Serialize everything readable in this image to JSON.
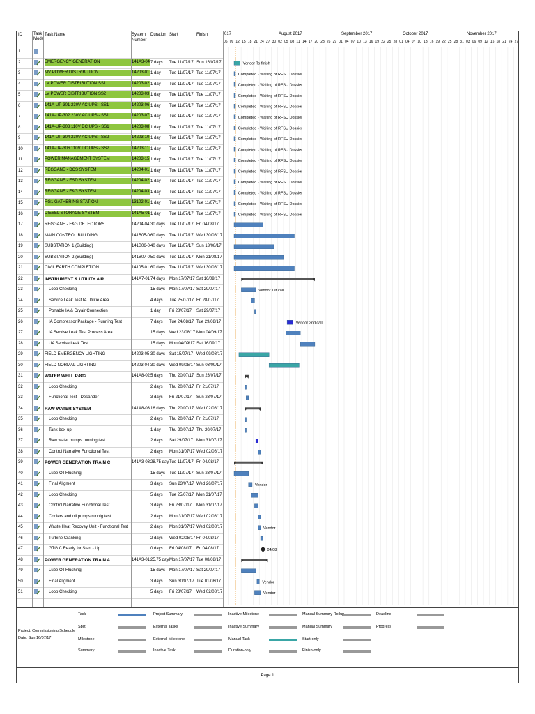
{
  "header": {
    "id": "ID",
    "task_mode": "Task Mode",
    "task_name": "Task Name",
    "system_number": "System Number",
    "duration": "Duration",
    "start": "Start",
    "finish": "Finish"
  },
  "months": [
    "017",
    "August 2017",
    "September 2017",
    "October 2017",
    "November 2017"
  ],
  "weeks": [
    "06",
    "09",
    "12",
    "15",
    "18",
    "21",
    "24",
    "27",
    "30",
    "02",
    "05",
    "08",
    "11",
    "14",
    "17",
    "20",
    "23",
    "26",
    "29",
    "01",
    "04",
    "07",
    "10",
    "13",
    "16",
    "19",
    "22",
    "25",
    "28",
    "01",
    "04",
    "07",
    "10",
    "13",
    "16",
    "19",
    "22",
    "25",
    "28",
    "31",
    "03",
    "06",
    "09",
    "12",
    "15",
    "18",
    "21",
    "24",
    "27"
  ],
  "tasks": [
    {
      "id": "1",
      "name": "",
      "sys": "",
      "dur": "",
      "start": "",
      "finish": "",
      "type": "blank"
    },
    {
      "id": "2",
      "name": "EMERGENCY GENERATION",
      "sys": "141A3-04",
      "dur": "7 days",
      "start": "Tue 11/07/17",
      "finish": "Sun 16/07/17",
      "type": "green",
      "bar": [
        0,
        5
      ],
      "kind": "teal",
      "label": "Vendor To finish"
    },
    {
      "id": "3",
      "name": "MV POWER DISTRIBUTION",
      "sys": "14203-01",
      "dur": "1 day",
      "start": "Tue 11/07/17",
      "finish": "Tue 11/07/17",
      "type": "green",
      "bar": [
        0,
        1
      ],
      "kind": "task",
      "label": "Completed - Waiting of RFSU Dossier"
    },
    {
      "id": "4",
      "name": "LV POWER DISTRIBUTION SS1",
      "sys": "14203-02",
      "dur": "1 day",
      "start": "Tue 11/07/17",
      "finish": "Tue 11/07/17",
      "type": "green",
      "bar": [
        0,
        1
      ],
      "kind": "task",
      "label": "Completed - Waiting of RFSU Dossier"
    },
    {
      "id": "5",
      "name": "LV POWER DISTRIBUTION SS2",
      "sys": "14203-03",
      "dur": "1 day",
      "start": "Tue 11/07/17",
      "finish": "Tue 11/07/17",
      "type": "green",
      "bar": [
        0,
        1
      ],
      "kind": "task",
      "label": "Completed - Waiting of RFSU Dossier"
    },
    {
      "id": "6",
      "name": "141A-UP-301 230V AC UPS - SS1",
      "sys": "14203-06",
      "dur": "1 day",
      "start": "Tue 11/07/17",
      "finish": "Tue 11/07/17",
      "type": "green",
      "bar": [
        0,
        1
      ],
      "kind": "task",
      "label": "Completed - Waiting of RFSU Dossier"
    },
    {
      "id": "7",
      "name": "141A-UP-302 230V AC UPS - SS1",
      "sys": "14203-07",
      "dur": "1 day",
      "start": "Tue 11/07/17",
      "finish": "Tue 11/07/17",
      "type": "green",
      "bar": [
        0,
        1
      ],
      "kind": "task",
      "label": "Completed - Waiting of RFSU Dossier"
    },
    {
      "id": "8",
      "name": "141A-UP-303 110V DC UPS - SS1",
      "sys": "14203-08",
      "dur": "1 day",
      "start": "Tue 11/07/17",
      "finish": "Tue 11/07/17",
      "type": "green",
      "bar": [
        0,
        1
      ],
      "kind": "task",
      "label": "Completed - Waiting of RFSU Dossier"
    },
    {
      "id": "9",
      "name": "141A-UP-304 230V AC UPS - SS2",
      "sys": "14203-10",
      "dur": "1 day",
      "start": "Tue 11/07/17",
      "finish": "Tue 11/07/17",
      "type": "green",
      "bar": [
        0,
        1
      ],
      "kind": "task",
      "label": "Completed - Waiting of RFSU Dossier"
    },
    {
      "id": "10",
      "name": "141A-UP-306 110V DC UPS - SS2",
      "sys": "14203-11",
      "dur": "1 day",
      "start": "Tue 11/07/17",
      "finish": "Tue 11/07/17",
      "type": "green",
      "bar": [
        0,
        1
      ],
      "kind": "task",
      "label": "Completed - Waiting of RFSU Dossier"
    },
    {
      "id": "11",
      "name": "POWER MANAGEMENT SYSTEM",
      "sys": "14203-15",
      "dur": "1 day",
      "start": "Tue 11/07/17",
      "finish": "Tue 11/07/17",
      "type": "green",
      "bar": [
        0,
        1
      ],
      "kind": "task",
      "label": "Completed - Waiting of RFSU Dossier"
    },
    {
      "id": "12",
      "name": "REGGANE - DCS SYSTEM",
      "sys": "14204-01",
      "dur": "1 day",
      "start": "Tue 11/07/17",
      "finish": "Tue 11/07/17",
      "type": "green",
      "bar": [
        0,
        1
      ],
      "kind": "task",
      "label": "Completed - Waiting of RFSU Dossier"
    },
    {
      "id": "13",
      "name": "REGGANE - ESD SYSTEM",
      "sys": "14204-02",
      "dur": "1 day",
      "start": "Tue 11/07/17",
      "finish": "Tue 11/07/17",
      "type": "green",
      "bar": [
        0,
        1
      ],
      "kind": "task",
      "label": "Completed - Waiting of RFSU Dossier"
    },
    {
      "id": "14",
      "name": "REGGANE - F&G SYSTEM",
      "sys": "14204-03",
      "dur": "1 day",
      "start": "Tue 11/07/17",
      "finish": "Tue 11/07/17",
      "type": "green",
      "bar": [
        0,
        1
      ],
      "kind": "task",
      "label": "Completed - Waiting of RFSU Dossier"
    },
    {
      "id": "15",
      "name": "RG1 GATHERING STATION",
      "sys": "13102-01",
      "dur": "1 day",
      "start": "Tue 11/07/17",
      "finish": "Tue 11/07/17",
      "type": "green",
      "bar": [
        0,
        1
      ],
      "kind": "task",
      "label": "Completed - Waiting of RFSU Dossier"
    },
    {
      "id": "16",
      "name": "DIESEL STORAGE SYSTEM",
      "sys": "141A5-01",
      "dur": "1 day",
      "start": "Tue 11/07/17",
      "finish": "Tue 11/07/17",
      "type": "green",
      "bar": [
        0,
        1
      ],
      "kind": "task",
      "label": "Completed - Waiting of RFSU Dossier"
    },
    {
      "id": "17",
      "name": "REGGANE - F&G DETECTORS",
      "sys": "14204-04",
      "dur": "30 days",
      "start": "Tue 11/07/17",
      "finish": "Fri 04/08/17",
      "type": "plain",
      "bar": [
        0,
        24
      ],
      "kind": "task",
      "label": ""
    },
    {
      "id": "18",
      "name": "MAIN CONTROL BUILDING",
      "sys": "141B05-0",
      "dur": "60 days",
      "start": "Tue 11/07/17",
      "finish": "Wed 30/08/17",
      "type": "plain",
      "bar": [
        0,
        50
      ],
      "kind": "task",
      "label": ""
    },
    {
      "id": "19",
      "name": "SUBSTATION 1 (Building)",
      "sys": "141B06-0",
      "dur": "40 days",
      "start": "Tue 11/07/17",
      "finish": "Sun 13/08/17",
      "type": "plain",
      "bar": [
        0,
        33
      ],
      "kind": "task",
      "label": ""
    },
    {
      "id": "20",
      "name": "SUBSTATION 2 (Building)",
      "sys": "141B07-0",
      "dur": "50 days",
      "start": "Tue 11/07/17",
      "finish": "Mon 21/08/17",
      "type": "plain",
      "bar": [
        0,
        41
      ],
      "kind": "task",
      "label": ""
    },
    {
      "id": "21",
      "name": "CIVIL EARTH COMPLETION",
      "sys": "14105-01",
      "dur": "60 days",
      "start": "Tue 11/07/17",
      "finish": "Wed 30/08/17",
      "type": "plain",
      "bar": [
        0,
        50
      ],
      "kind": "task",
      "label": ""
    },
    {
      "id": "22",
      "name": "INSTRUMENT & UTILITY AIR",
      "sys": "141A7-01",
      "dur": "74 days",
      "start": "Mon 17/07/17",
      "finish": "Sat 16/09/17",
      "type": "sum",
      "bar": [
        6,
        67
      ],
      "kind": "summary",
      "label": ""
    },
    {
      "id": "23",
      "name": "Loop Checking",
      "sys": "",
      "dur": "15 days",
      "start": "Mon 17/07/17",
      "finish": "Sat 29/07/17",
      "type": "sub",
      "bar": [
        6,
        18
      ],
      "kind": "task",
      "label": "Vendor 1st call"
    },
    {
      "id": "24",
      "name": "Service Leak Test IA Utilitie Area",
      "sys": "",
      "dur": "4 days",
      "start": "Tue 25/07/17",
      "finish": "Fri 28/07/17",
      "type": "sub",
      "bar": [
        14,
        17
      ],
      "kind": "task",
      "label": ""
    },
    {
      "id": "25",
      "name": "Portable IA & Dryair Connection",
      "sys": "",
      "dur": "1 day",
      "start": "Fri 28/07/17",
      "finish": "Sat 29/07/17",
      "type": "sub",
      "bar": [
        17,
        18
      ],
      "kind": "task",
      "label": ""
    },
    {
      "id": "26",
      "name": "IA Compressor Package - Running Test",
      "sys": "",
      "dur": "7 days",
      "start": "Tue 24/08/17",
      "finish": "Tue 29/08/17",
      "type": "sub",
      "bar": [
        44,
        49
      ],
      "kind": "task-dark",
      "label": "Vendor 2nd call"
    },
    {
      "id": "27",
      "name": "IA Servise Leak Test Process Area",
      "sys": "",
      "dur": "15 days",
      "start": "Wed 23/08/17",
      "finish": "Mon 04/09/17",
      "type": "sub",
      "bar": [
        43,
        55
      ],
      "kind": "task",
      "label": ""
    },
    {
      "id": "28",
      "name": "UA Servise Leak Test",
      "sys": "",
      "dur": "15 days",
      "start": "Mon 04/09/17",
      "finish": "Sat 16/09/17",
      "type": "sub",
      "bar": [
        55,
        67
      ],
      "kind": "task",
      "label": ""
    },
    {
      "id": "29",
      "name": "FIELD EMERGENCY LIGHTING",
      "sys": "14203-05",
      "dur": "30 days",
      "start": "Sat 15/07/17",
      "finish": "Wed 09/08/17",
      "type": "plain",
      "bar": [
        4,
        29
      ],
      "kind": "teal",
      "label": ""
    },
    {
      "id": "30",
      "name": "FIELD NORMAL LIGHTING",
      "sys": "14203-04",
      "dur": "30 days",
      "start": "Wed 09/08/17",
      "finish": "Sun 03/09/17",
      "type": "plain",
      "bar": [
        29,
        54
      ],
      "kind": "teal",
      "label": ""
    },
    {
      "id": "31",
      "name": "WATER WELL P-802",
      "sys": "141A8-02",
      "dur": "5 days",
      "start": "Thu 20/07/17",
      "finish": "Sun 23/07/17",
      "type": "sum",
      "bar": [
        9,
        12
      ],
      "kind": "summary",
      "label": ""
    },
    {
      "id": "32",
      "name": "Loop Checking",
      "sys": "",
      "dur": "2 days",
      "start": "Thu 20/07/17",
      "finish": "Fri 21/07/17",
      "type": "sub",
      "bar": [
        9,
        10
      ],
      "kind": "task",
      "label": ""
    },
    {
      "id": "33",
      "name": "Functional Test - Desander",
      "sys": "",
      "dur": "3 days",
      "start": "Fri 21/07/17",
      "finish": "Sun 23/07/17",
      "type": "sub",
      "bar": [
        10,
        12
      ],
      "kind": "task",
      "label": ""
    },
    {
      "id": "34",
      "name": "RAW WATER SYSTEM",
      "sys": "141A8-03",
      "dur": "16 days",
      "start": "Thu 20/07/17",
      "finish": "Wed 02/08/17",
      "type": "sum",
      "bar": [
        9,
        22
      ],
      "kind": "summary",
      "label": ""
    },
    {
      "id": "35",
      "name": "Loop Checking",
      "sys": "",
      "dur": "2 days",
      "start": "Thu 20/07/17",
      "finish": "Fri 21/07/17",
      "type": "sub",
      "bar": [
        9,
        10
      ],
      "kind": "task",
      "label": ""
    },
    {
      "id": "36",
      "name": "Tank box-up",
      "sys": "",
      "dur": "1 day",
      "start": "Thu 20/07/17",
      "finish": "Thu 20/07/17",
      "type": "sub",
      "bar": [
        9,
        10
      ],
      "kind": "task",
      "label": ""
    },
    {
      "id": "37",
      "name": "Raw water pumps running test",
      "sys": "",
      "dur": "2 days",
      "start": "Sat 29/07/17",
      "finish": "Mon 31/07/17",
      "type": "sub",
      "bar": [
        18,
        20
      ],
      "kind": "task-dark",
      "label": ""
    },
    {
      "id": "38",
      "name": "Control Narrative Functional Test",
      "sys": "",
      "dur": "2 days",
      "start": "Mon 31/07/17",
      "finish": "Wed 02/08/17",
      "type": "sub",
      "bar": [
        20,
        22
      ],
      "kind": "task",
      "label": ""
    },
    {
      "id": "39",
      "name": "POWER GENERATION TRAIN C",
      "sys": "141A3-03",
      "dur": "28.75 days",
      "start": "Tue 11/07/17",
      "finish": "Fri 04/08/17",
      "type": "sum",
      "bar": [
        0,
        24
      ],
      "kind": "summary",
      "label": ""
    },
    {
      "id": "40",
      "name": "Lube Oil Flushing",
      "sys": "",
      "dur": "15 days",
      "start": "Tue 11/07/17",
      "finish": "Sun 23/07/17",
      "type": "sub",
      "bar": [
        0,
        12
      ],
      "kind": "task",
      "label": ""
    },
    {
      "id": "41",
      "name": "Final Aligment",
      "sys": "",
      "dur": "3 days",
      "start": "Sun 23/07/17",
      "finish": "Wed 26/07/17",
      "type": "sub",
      "bar": [
        12,
        15
      ],
      "kind": "task",
      "label": "Vendor"
    },
    {
      "id": "42",
      "name": "Loop Checking",
      "sys": "",
      "dur": "5 days",
      "start": "Tue 25/07/17",
      "finish": "Mon 31/07/17",
      "type": "sub",
      "bar": [
        14,
        20
      ],
      "kind": "task",
      "label": ""
    },
    {
      "id": "43",
      "name": "Control Narrative Functional Test",
      "sys": "",
      "dur": "3 days",
      "start": "Fri 28/07/17",
      "finish": "Mon 31/07/17",
      "type": "sub",
      "bar": [
        17,
        20
      ],
      "kind": "task",
      "label": ""
    },
    {
      "id": "44",
      "name": "Coolers and oil pumps runnig test",
      "sys": "",
      "dur": "2 days",
      "start": "Mon 31/07/17",
      "finish": "Wed 02/08/17",
      "type": "sub",
      "bar": [
        20,
        22
      ],
      "kind": "task",
      "label": ""
    },
    {
      "id": "45",
      "name": "Waste Heat Recovey Unit - Functional Test",
      "sys": "",
      "dur": "2 days",
      "start": "Mon 31/07/17",
      "finish": "Wed 02/08/17",
      "type": "sub",
      "bar": [
        20,
        22
      ],
      "kind": "task",
      "label": "Vendor"
    },
    {
      "id": "46",
      "name": "Turbine Cranking",
      "sys": "",
      "dur": "2 days",
      "start": "Wed 02/08/17",
      "finish": "Fri 04/08/17",
      "type": "sub",
      "bar": [
        22,
        24
      ],
      "kind": "task",
      "label": ""
    },
    {
      "id": "47",
      "name": "GTG C Ready for Start - Up",
      "sys": "",
      "dur": "0 days",
      "start": "Fri 04/08/17",
      "finish": "Fri 04/08/17",
      "type": "sub",
      "bar": [
        24,
        24
      ],
      "kind": "milestone",
      "label": "04/08"
    },
    {
      "id": "48",
      "name": "POWER GENERATION TRAIN A",
      "sys": "141A3-01",
      "dur": "25.75 days",
      "start": "Mon 17/07/17",
      "finish": "Tue 08/08/17",
      "type": "sum",
      "bar": [
        6,
        28
      ],
      "kind": "summary",
      "label": ""
    },
    {
      "id": "49",
      "name": "Lube Oil Flushing",
      "sys": "",
      "dur": "15 days",
      "start": "Mon 17/07/17",
      "finish": "Sat 29/07/17",
      "type": "sub",
      "bar": [
        6,
        18
      ],
      "kind": "task",
      "label": ""
    },
    {
      "id": "50",
      "name": "Final Aligment",
      "sys": "",
      "dur": "3 days",
      "start": "Sun 30/07/17",
      "finish": "Tue 01/08/17",
      "type": "sub",
      "bar": [
        19,
        21
      ],
      "kind": "task",
      "label": "Vendor"
    },
    {
      "id": "51",
      "name": "Loop Checking",
      "sys": "",
      "dur": "5 days",
      "start": "Fri 28/07/17",
      "finish": "Wed 02/08/17",
      "type": "sub",
      "bar": [
        17,
        22
      ],
      "kind": "task",
      "label": "Vendor"
    }
  ],
  "legend": {
    "project": "Project: Commissioning Schedule",
    "date": "Date: Sun 16/07/17",
    "items": [
      [
        "Task",
        "Project Summary",
        "Inactive Milestone",
        "Manual Summary Rollup",
        "Deadline"
      ],
      [
        "Split",
        "External Tasks",
        "Inactive Summary",
        "Manual Summary",
        "Progress"
      ],
      [
        "Milestone",
        "External Milestone",
        "Manual Task",
        "Start-only",
        ""
      ],
      [
        "Summary",
        "Inactive Task",
        "Duration-only",
        "Finish-only",
        ""
      ]
    ]
  },
  "footer": {
    "page": "Page 1"
  },
  "colors": {
    "green": "#8ec63f",
    "task": "#4f81bd",
    "teal": "#3aa6a6",
    "dark": "#2b2bd4"
  }
}
